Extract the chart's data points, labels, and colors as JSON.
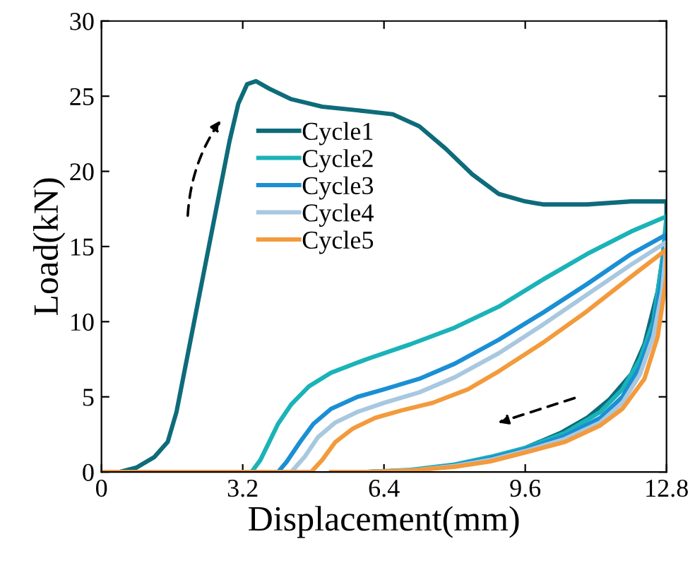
{
  "chart_data": {
    "type": "line",
    "xlabel": "Displacement(mm)",
    "ylabel": "Load(kN)",
    "xlim": [
      0,
      12.8
    ],
    "xticks": [
      0,
      3.2,
      6.4,
      9.6,
      12.8
    ],
    "ylim": [
      0,
      30
    ],
    "yticks": [
      0,
      5,
      10,
      15,
      20,
      25,
      30
    ],
    "grid": false,
    "legend": "center",
    "marker": "none",
    "line_style": "solid",
    "series": [
      {
        "name": "Cycle1",
        "color": "#0e6b7a",
        "x": [
          0,
          0.4,
          0.8,
          1.2,
          1.5,
          1.7,
          1.9,
          2.1,
          2.3,
          2.5,
          2.7,
          2.9,
          3.1,
          3.3,
          3.5,
          3.8,
          4.3,
          5,
          6,
          6.6,
          7.2,
          7.8,
          8.4,
          9,
          9.6,
          10,
          11,
          12,
          12.8,
          12.8,
          12.6,
          12.3,
          12,
          11.5,
          11,
          10.4,
          9.6,
          8.8,
          8,
          7,
          6,
          5.5
        ],
        "values": [
          0,
          0,
          0.3,
          1,
          2,
          4,
          7,
          10,
          13,
          16,
          19,
          22,
          24.5,
          25.8,
          26,
          25.5,
          24.8,
          24.3,
          24,
          23.8,
          23,
          21.5,
          19.8,
          18.5,
          18,
          17.8,
          17.8,
          18,
          18,
          16,
          12,
          8.5,
          6.5,
          4.8,
          3.6,
          2.6,
          1.6,
          0.9,
          0.4,
          0.1,
          0,
          0
        ]
      },
      {
        "name": "Cycle2",
        "color": "#1ab3b8",
        "x": [
          0,
          3.4,
          3.6,
          3.8,
          4,
          4.3,
          4.7,
          5.2,
          6,
          7,
          8,
          9,
          10,
          11,
          12,
          12.8,
          12.7,
          12.5,
          12.2,
          11.8,
          11.3,
          10.5,
          9.6,
          8.8,
          8,
          7,
          6
        ],
        "values": [
          0,
          0,
          0.8,
          2,
          3.2,
          4.5,
          5.7,
          6.6,
          7.5,
          8.5,
          9.6,
          11,
          12.8,
          14.5,
          16,
          17,
          14,
          10,
          7.5,
          5.5,
          4,
          2.6,
          1.6,
          1,
          0.5,
          0.15,
          0
        ]
      },
      {
        "name": "Cycle3",
        "color": "#1a8fd4",
        "x": [
          0,
          4,
          4.2,
          4.5,
          4.8,
          5.2,
          5.8,
          6.4,
          7.2,
          8,
          9,
          10,
          11,
          12,
          12.8,
          12.7,
          12.5,
          12.2,
          11.8,
          11.3,
          10.5,
          9.6,
          8.8,
          8,
          7,
          6
        ],
        "values": [
          0,
          0,
          0.7,
          2,
          3.2,
          4.2,
          5,
          5.5,
          6.2,
          7.2,
          8.8,
          10.6,
          12.5,
          14.5,
          15.8,
          13,
          9.5,
          7,
          5,
          3.6,
          2.4,
          1.5,
          0.9,
          0.45,
          0.1,
          0
        ]
      },
      {
        "name": "Cycle4",
        "color": "#a8c8e0",
        "x": [
          0,
          4.3,
          4.6,
          4.9,
          5.3,
          5.8,
          6.4,
          7.2,
          8,
          9,
          10,
          11,
          12,
          12.8,
          12.7,
          12.5,
          12.2,
          11.8,
          11.3,
          10.5,
          9.6,
          8.8,
          8,
          7,
          6
        ],
        "values": [
          0,
          0,
          1,
          2.3,
          3.3,
          4,
          4.6,
          5.3,
          6.3,
          7.9,
          9.8,
          11.8,
          13.8,
          15.3,
          12,
          9,
          6.5,
          4.6,
          3.3,
          2.2,
          1.4,
          0.8,
          0.4,
          0.1,
          0
        ]
      },
      {
        "name": "Cycle5",
        "color": "#f39a3c",
        "x": [
          0,
          4.75,
          5,
          5.3,
          5.7,
          6.2,
          6.8,
          7.5,
          8.3,
          9,
          10,
          11,
          12,
          12.8,
          12.8,
          12.6,
          12.3,
          11.8,
          11.3,
          10.5,
          9.6,
          8.8,
          8,
          7,
          6,
          5.2
        ],
        "values": [
          0,
          0,
          0.8,
          2,
          2.9,
          3.6,
          4.1,
          4.6,
          5.5,
          6.7,
          8.6,
          10.7,
          13,
          14.8,
          13,
          9,
          6.2,
          4.2,
          3.1,
          2,
          1.3,
          0.7,
          0.35,
          0.1,
          0,
          0
        ]
      }
    ]
  }
}
